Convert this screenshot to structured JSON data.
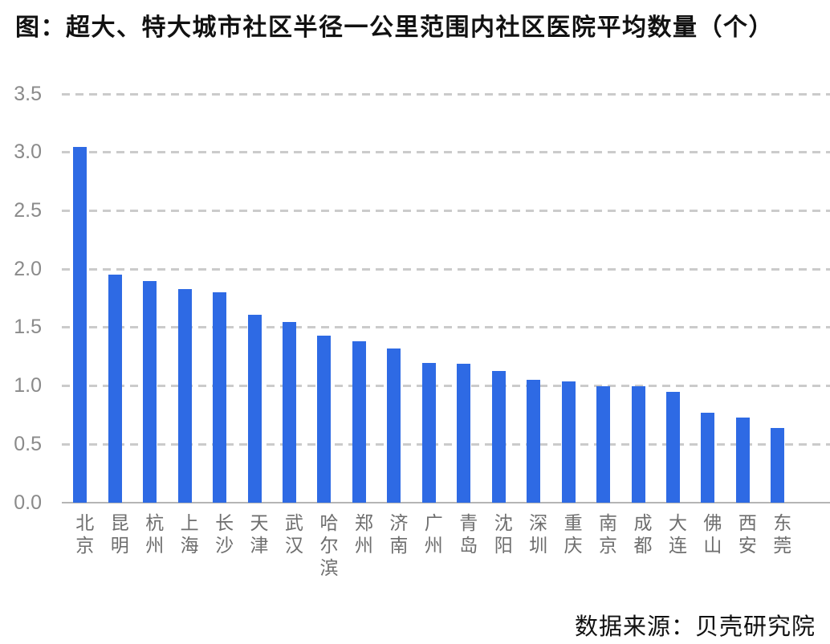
{
  "title": "图：超大、特大城市社区半径一公里范围内社区医院平均数量（个）",
  "source": {
    "text": "数据来源：贝壳研究院"
  },
  "colors": {
    "bar": "#2e6ae4",
    "gridline": "#cbcbcb",
    "axis_line": "#b5b5b5",
    "y_label": "#8a8a8a",
    "x_label": "#6e6e6e",
    "title_text": "#111111"
  },
  "chart_data": {
    "type": "bar",
    "title": "图：超大、特大城市社区半径一公里范围内社区医院平均数量（个）",
    "categories": [
      "北京",
      "昆明",
      "杭州",
      "上海",
      "长沙",
      "天津",
      "武汉",
      "哈尔滨",
      "郑州",
      "济南",
      "广州",
      "青岛",
      "沈阳",
      "深圳",
      "重庆",
      "南京",
      "成都",
      "大连",
      "佛山",
      "西安",
      "东莞"
    ],
    "values": [
      3.05,
      1.95,
      1.9,
      1.83,
      1.8,
      1.61,
      1.55,
      1.43,
      1.38,
      1.32,
      1.2,
      1.19,
      1.13,
      1.05,
      1.04,
      1.0,
      1.0,
      0.95,
      0.77,
      0.73,
      0.64
    ],
    "xlabel": "",
    "ylabel": "",
    "ylim": [
      0,
      3.5
    ],
    "yticks": [
      0.0,
      0.5,
      1.0,
      1.5,
      2.0,
      2.5,
      3.0,
      3.5
    ],
    "ytick_labels": [
      "0.0",
      "0.5",
      "1.0",
      "1.5",
      "2.0",
      "2.5",
      "3.0",
      "3.5"
    ],
    "grid": "horizontal-dashed",
    "legend": "none",
    "bar_color": "#2e6ae4",
    "source_note": "数据来源：贝壳研究院"
  }
}
